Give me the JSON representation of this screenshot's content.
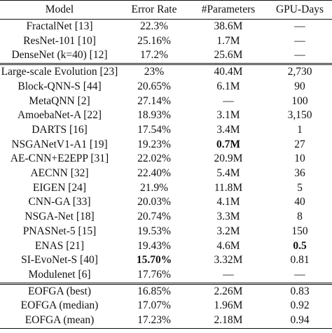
{
  "header": {
    "model": "Model",
    "error_rate": "Error Rate",
    "parameters": "#Parameters",
    "gpu_days": "GPU-Days"
  },
  "group1": [
    {
      "model": "FractalNet [13]",
      "error": "22.3%",
      "params": "38.6M",
      "gpu": "—"
    },
    {
      "model": "ResNet-101 [10]",
      "error": "25.16%",
      "params": "1.7M",
      "gpu": "—"
    },
    {
      "model": "DenseNet (k=40) [12]",
      "error": "17.2%",
      "params": "25.6M",
      "gpu": "—"
    }
  ],
  "group2": [
    {
      "model": "Large-scale Evolution [23]",
      "error": "23%",
      "params": "40.4M",
      "gpu": "2,730"
    },
    {
      "model": "Block-QNN-S [44]",
      "error": "20.65%",
      "params": "6.1M",
      "gpu": "90"
    },
    {
      "model": "MetaQNN [2]",
      "error": "27.14%",
      "params": "—",
      "gpu": "100"
    },
    {
      "model": "AmoebaNet-A [22]",
      "error": "18.93%",
      "params": "3.1M",
      "gpu": "3,150"
    },
    {
      "model": "DARTS [16]",
      "error": "17.54%",
      "params": "3.4M",
      "gpu": "1"
    },
    {
      "model": "NSGANetV1-A1 [19]",
      "error": "19.23%",
      "params": "0.7M",
      "gpu": "27"
    },
    {
      "model": "AE-CNN+E2EPP [31]",
      "error": "22.02%",
      "params": "20.9M",
      "gpu": "10"
    },
    {
      "model": "AECNN [32]",
      "error": "22.40%",
      "params": "5.4M",
      "gpu": "36"
    },
    {
      "model": "EIGEN [24]",
      "error": "21.9%",
      "params": "11.8M",
      "gpu": "5"
    },
    {
      "model": "CNN-GA [33]",
      "error": "20.03%",
      "params": "4.1M",
      "gpu": "40"
    },
    {
      "model": "NSGA-Net [18]",
      "error": "20.74%",
      "params": "3.3M",
      "gpu": "8"
    },
    {
      "model": "PNASNet-5 [15]",
      "error": "19.53%",
      "params": "3.2M",
      "gpu": "150"
    },
    {
      "model": "ENAS [21]",
      "error": "19.43%",
      "params": "4.6M",
      "gpu": "0.5"
    },
    {
      "model": "SI-EvoNet-S [40]",
      "error": "15.70%",
      "params": "3.32M",
      "gpu": "0.81"
    },
    {
      "model": "Modulenet [6]",
      "error": "17.76%",
      "params": "—",
      "gpu": "—"
    }
  ],
  "group3": [
    {
      "model": "EOFGA (best)",
      "error": "16.85%",
      "params": "2.26M",
      "gpu": "0.83"
    },
    {
      "model": "EOFGA (median)",
      "error": "17.07%",
      "params": "1.96M",
      "gpu": "0.92"
    },
    {
      "model": "EOFGA (mean)",
      "error": "17.23%",
      "params": "2.18M",
      "gpu": "0.94"
    }
  ]
}
